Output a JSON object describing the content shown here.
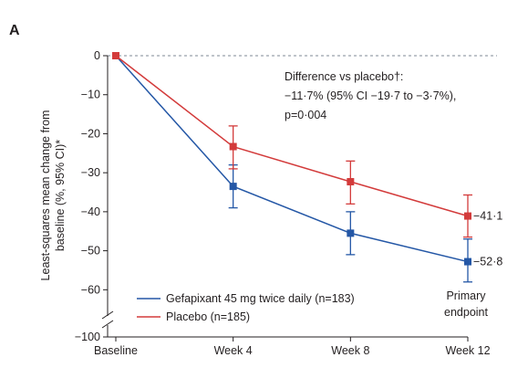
{
  "panel_label": "A",
  "chart_data": {
    "type": "line",
    "ylabel": "Least-squares mean change from baseline (%, 95% CI)*",
    "ylabel_lines": [
      "Least-squares mean change from",
      "baseline (%, 95% CI)*"
    ],
    "categories": [
      "Baseline",
      "Week 4",
      "Week 8",
      "Week 12"
    ],
    "x": [
      0,
      4,
      8,
      12
    ],
    "y_ticks": [
      0,
      -10,
      -20,
      -30,
      -40,
      -50,
      -60
    ],
    "y_tick_labels": [
      "0",
      "−10",
      "−20",
      "−30",
      "−40",
      "−50",
      "−60"
    ],
    "y_break_tick": -100,
    "y_break_tick_label": "−100",
    "ylim": [
      -60,
      0
    ],
    "reference_line": 0,
    "series": [
      {
        "name": "Gefapixant 45 mg twice daily (n=183)",
        "color": "#2457a6",
        "values": [
          0,
          -33.5,
          -45.5,
          -52.8
        ],
        "ci_lower": [
          0,
          -39,
          -51,
          -58
        ],
        "ci_upper": [
          0,
          -28,
          -40,
          -47
        ]
      },
      {
        "name": "Placebo (n=185)",
        "color": "#d33b3b",
        "values": [
          0,
          -23.3,
          -32.3,
          -41.1
        ],
        "ci_lower": [
          0,
          -29,
          -38,
          -46.5
        ],
        "ci_upper": [
          0,
          -18,
          -27,
          -35.7
        ]
      }
    ],
    "end_labels": [
      "−52·8",
      "−41·1"
    ],
    "annotation": [
      "Difference vs placebo†:",
      "−11·7% (95% CI −19·7 to −3·7%),",
      "p=0·004"
    ],
    "primary_endpoint_label": [
      "Primary",
      "endpoint"
    ],
    "legend_position": "bottom-left"
  }
}
